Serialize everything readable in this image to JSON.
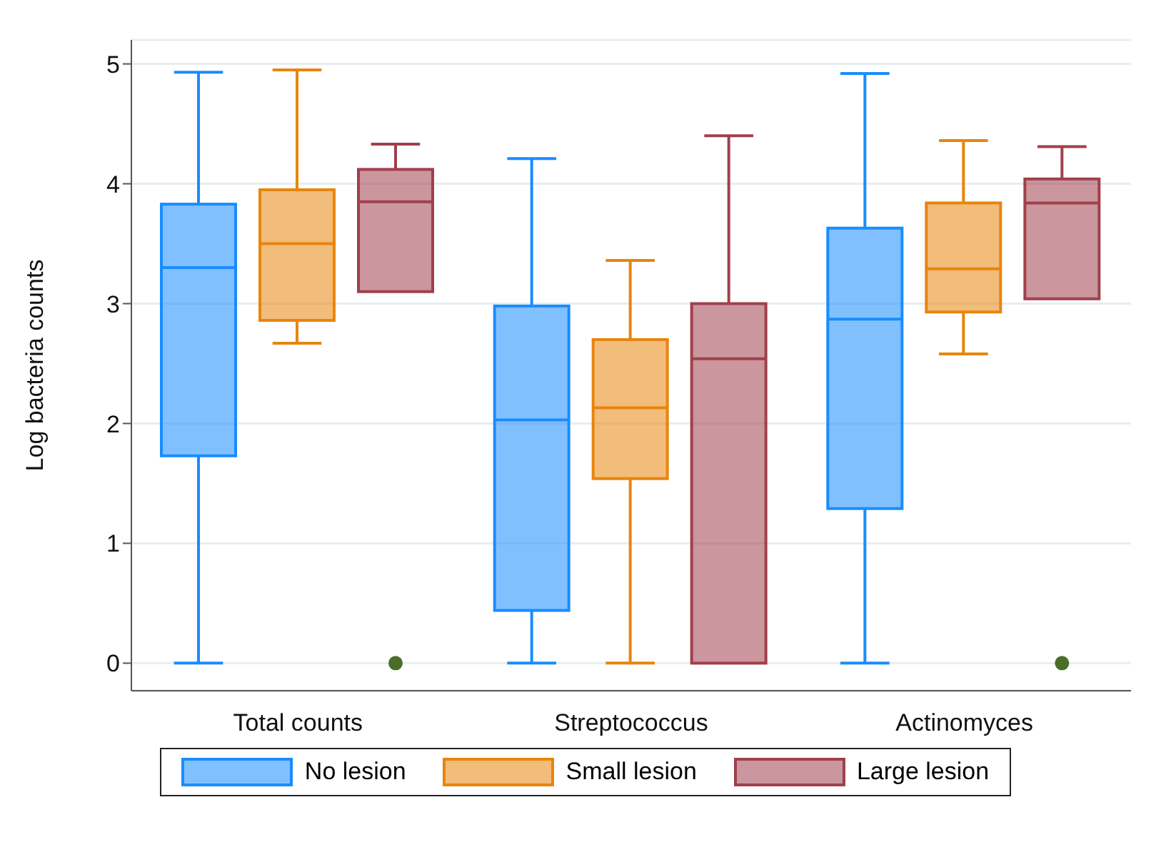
{
  "chart_data": {
    "type": "box",
    "ylabel": "Log bacteria counts",
    "categories": [
      "Total counts",
      "Streptococcus",
      "Actinomyces"
    ],
    "series": [
      {
        "name": "No lesion",
        "color": "#1a8cff",
        "boxes": [
          {
            "low": 0,
            "q1": 1.73,
            "median": 3.3,
            "q3": 3.83,
            "high": 4.93
          },
          {
            "low": 0,
            "q1": 0.44,
            "median": 2.03,
            "q3": 2.98,
            "high": 4.21
          },
          {
            "low": 0,
            "q1": 1.29,
            "median": 2.87,
            "q3": 3.63,
            "high": 4.92
          }
        ]
      },
      {
        "name": "Small lesion",
        "color": "#e8850c",
        "boxes": [
          {
            "low": 2.67,
            "q1": 2.86,
            "median": 3.5,
            "q3": 3.95,
            "high": 4.95
          },
          {
            "low": 0,
            "q1": 1.54,
            "median": 2.13,
            "q3": 2.7,
            "high": 3.36
          },
          {
            "low": 2.58,
            "q1": 2.93,
            "median": 3.29,
            "q3": 3.84,
            "high": 4.36
          }
        ]
      },
      {
        "name": "Large lesion",
        "color": "#a0404c",
        "boxes": [
          {
            "low": 3.1,
            "q1": 3.1,
            "median": 3.85,
            "q3": 4.12,
            "high": 4.33,
            "outliers": [
              0
            ]
          },
          {
            "low": 0,
            "q1": 0,
            "median": 2.54,
            "q3": 3.0,
            "high": 4.4
          },
          {
            "low": 3.04,
            "q1": 3.04,
            "median": 3.84,
            "q3": 4.04,
            "high": 4.31,
            "outliers": [
              0
            ]
          }
        ]
      }
    ],
    "ylim": [
      -0.23,
      5.2
    ],
    "yticks": [
      0,
      1,
      2,
      3,
      4,
      5
    ],
    "grid": "y",
    "legend": "bottom"
  }
}
